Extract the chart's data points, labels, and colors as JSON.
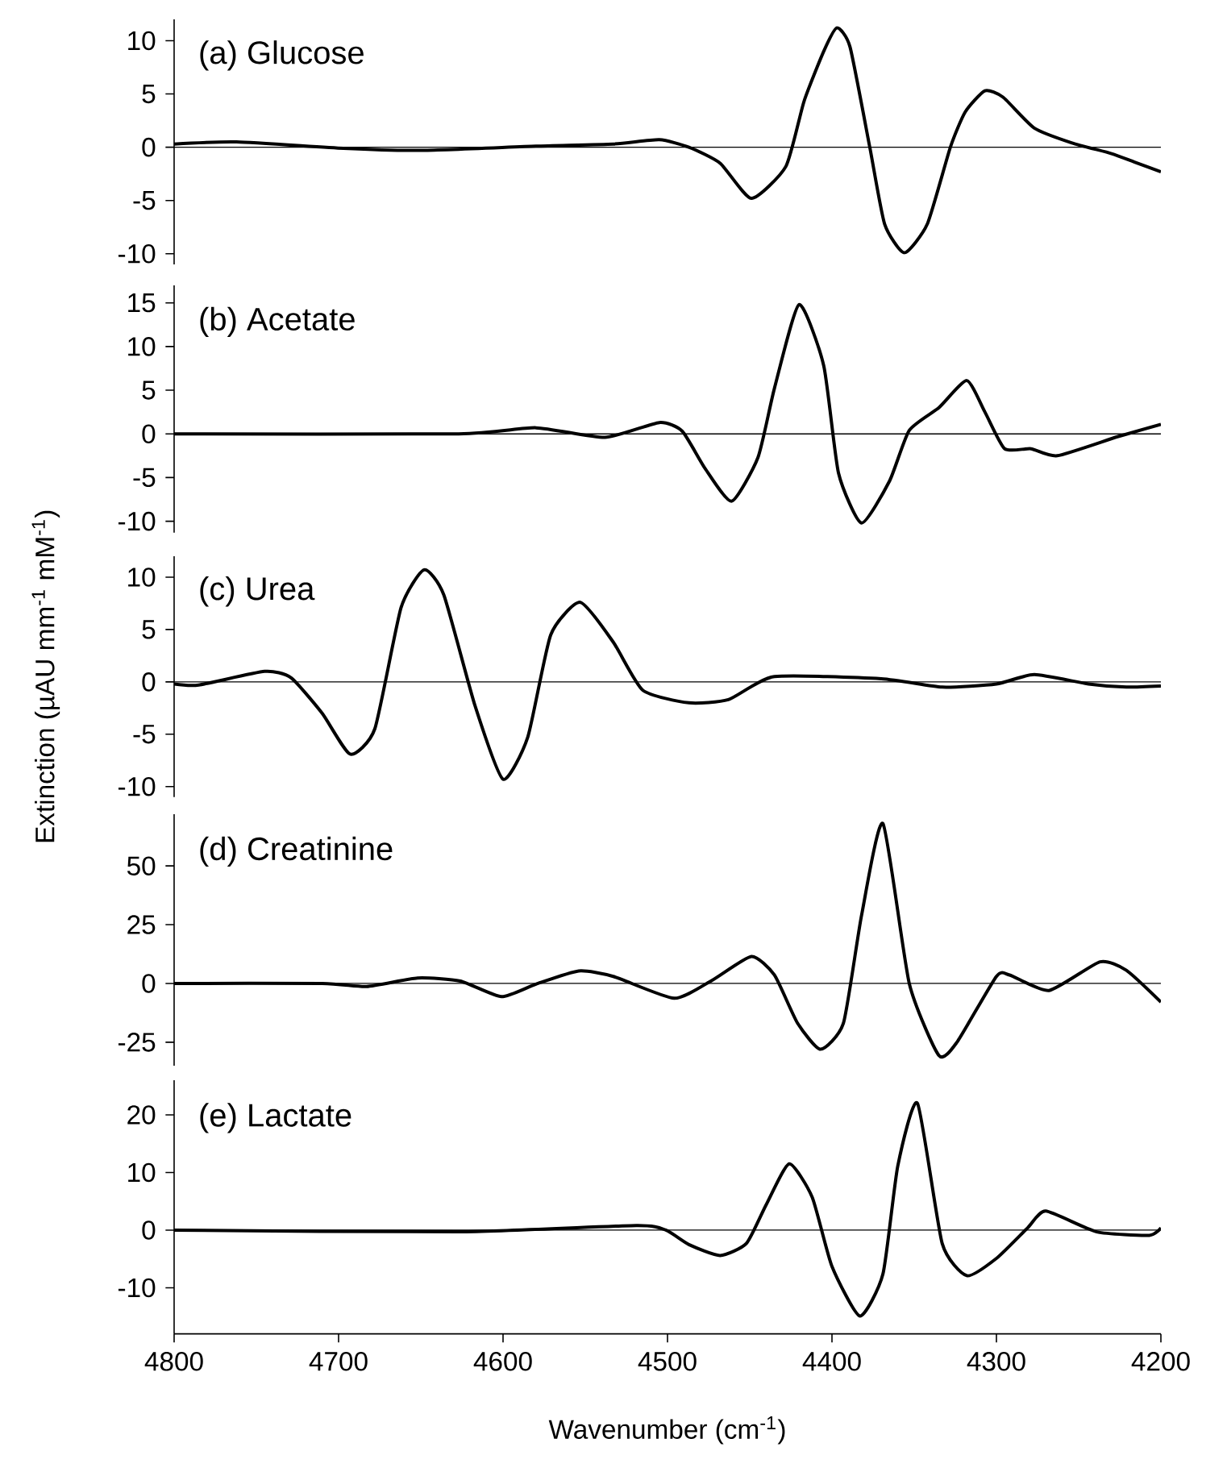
{
  "chart_data": [
    {
      "type": "line",
      "title": "(a) Glucose",
      "xlim": [
        4800,
        4200
      ],
      "ylim": [
        -11,
        12
      ],
      "yticks": [
        -10,
        -5,
        0,
        5,
        10
      ],
      "tick_labels": "y",
      "ref_lines": [
        {
          "axis": "y",
          "value": 0
        }
      ],
      "series": [
        {
          "color": "#000000",
          "x": [
            4800,
            4762,
            4697,
            4650,
            4580,
            4533,
            4505,
            4487,
            4468,
            4449,
            4428,
            4417,
            4405,
            4397,
            4389,
            4377,
            4368,
            4356,
            4342,
            4328,
            4319,
            4307,
            4296,
            4277,
            4254,
            4230,
            4216,
            4200
          ],
          "values": [
            0.3,
            0.5,
            -0.1,
            -0.3,
            0.1,
            0.3,
            0.7,
            0,
            -1.5,
            -4.8,
            -1.8,
            4.3,
            9,
            11.2,
            9.4,
            0,
            -7.2,
            -9.9,
            -7.2,
            0,
            3.3,
            5.3,
            4.7,
            1.8,
            0.4,
            -0.6,
            -1.4,
            -2.3
          ]
        }
      ]
    },
    {
      "type": "line",
      "title": "(b) Acetate",
      "xlim": [
        4800,
        4200
      ],
      "ylim": [
        -11.3,
        17
      ],
      "yticks": [
        -10,
        -5,
        0,
        5,
        10,
        15
      ],
      "tick_labels": "y",
      "ref_lines": [
        {
          "axis": "y",
          "value": 0
        }
      ],
      "series": [
        {
          "color": "#000000",
          "x": [
            4800,
            4627,
            4580,
            4538,
            4505,
            4491,
            4477,
            4461,
            4445,
            4435,
            4420,
            4405,
            4396,
            4382,
            4365,
            4353,
            4335,
            4318,
            4307,
            4295,
            4279,
            4263,
            4226,
            4200
          ],
          "values": [
            0,
            0,
            0.7,
            -0.4,
            1.3,
            0.3,
            -4,
            -7.7,
            -2.7,
            5.2,
            14.8,
            7.8,
            -4.5,
            -10.2,
            -5.4,
            0.4,
            3,
            6.1,
            2.5,
            -1.7,
            -1.7,
            -2.5,
            -0.3,
            1.1
          ]
        }
      ]
    },
    {
      "type": "line",
      "title": "(c) Urea",
      "ylabel": "Extinction (µAU mm$^{-1}$ mM$^{-1}$)",
      "xlim": [
        4800,
        4200
      ],
      "ylim": [
        -11,
        12
      ],
      "yticks": [
        -10,
        -5,
        0,
        5,
        10
      ],
      "tick_labels": "y",
      "ref_lines": [
        {
          "axis": "y",
          "value": 0
        }
      ],
      "series": [
        {
          "color": "#000000",
          "x": [
            4800,
            4785,
            4745,
            4729,
            4710,
            4693,
            4678,
            4662,
            4648,
            4636,
            4617,
            4600,
            4585,
            4571,
            4553,
            4533,
            4515,
            4487,
            4463,
            4435,
            4370,
            4333,
            4300,
            4277,
            4244,
            4221,
            4200
          ],
          "values": [
            -0.2,
            -0.3,
            1,
            0.4,
            -3,
            -6.9,
            -4.5,
            7.1,
            10.7,
            8.3,
            -2.3,
            -9.3,
            -5.3,
            4.5,
            7.6,
            3.8,
            -0.8,
            -2,
            -1.7,
            0.5,
            0.3,
            -0.5,
            -0.2,
            0.7,
            -0.2,
            -0.5,
            -0.4
          ]
        }
      ]
    },
    {
      "type": "line",
      "title": "(d) Creatinine",
      "xlim": [
        4800,
        4200
      ],
      "ylim": [
        -35,
        72
      ],
      "yticks": [
        -25,
        0,
        25,
        50
      ],
      "tick_labels": "y",
      "ref_lines": [
        {
          "axis": "y",
          "value": 0
        }
      ],
      "series": [
        {
          "color": "#000000",
          "x": [
            4800,
            4710,
            4683,
            4652,
            4626,
            4601,
            4580,
            4554,
            4533,
            4496,
            4473,
            4449,
            4435,
            4421,
            4407,
            4393,
            4382,
            4369,
            4353,
            4335,
            4324,
            4300,
            4292,
            4268,
            4237,
            4221,
            4200
          ],
          "values": [
            0,
            0,
            -1.3,
            2.3,
            1,
            -5.6,
            -0.3,
            5.3,
            3,
            -6.3,
            1.3,
            11.5,
            3.6,
            -16.8,
            -28,
            -16.8,
            29,
            68,
            0,
            -30.6,
            -25,
            3,
            3.6,
            -3,
            9.2,
            5.6,
            -7.9
          ]
        }
      ]
    },
    {
      "type": "line",
      "title": "(e) Lactate",
      "xlabel": "Wavenumber (cm$^{-1}$)",
      "xlim": [
        4800,
        4200
      ],
      "xticks": [
        4800,
        4700,
        4600,
        4500,
        4400,
        4300,
        4200
      ],
      "ylim": [
        -18,
        26
      ],
      "yticks": [
        -10,
        0,
        10,
        20
      ],
      "ref_lines": [
        {
          "axis": "y",
          "value": 0
        }
      ],
      "series": [
        {
          "color": "#000000",
          "x": [
            4800,
            4627,
            4519,
            4501,
            4487,
            4468,
            4452,
            4440,
            4426,
            4412,
            4400,
            4383,
            4369,
            4360,
            4348,
            4333,
            4318,
            4300,
            4281,
            4270,
            4239,
            4207,
            4200
          ],
          "values": [
            0,
            -0.3,
            0.8,
            0,
            -2.5,
            -4.4,
            -2.3,
            4.4,
            11.5,
            5.7,
            -6.3,
            -14.9,
            -7.6,
            11.1,
            22,
            -2.3,
            -7.9,
            -4.9,
            0.4,
            3.3,
            -0.3,
            -0.9,
            0.4
          ]
        }
      ]
    }
  ]
}
